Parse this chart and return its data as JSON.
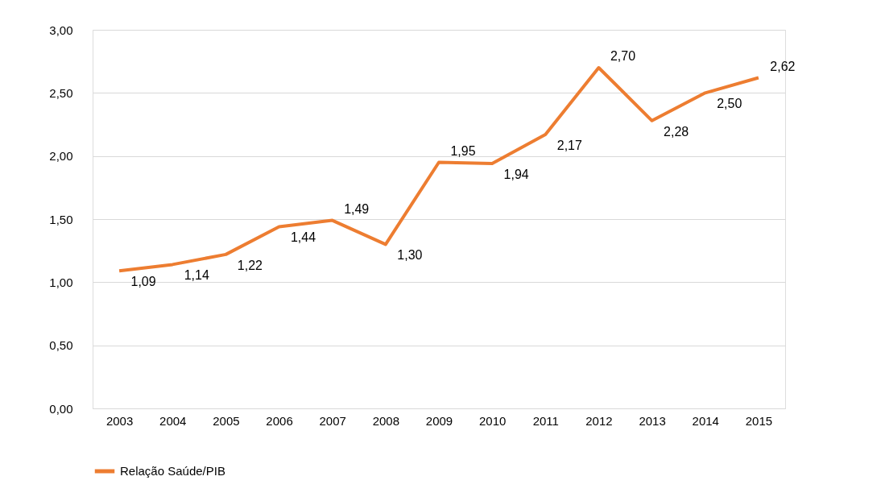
{
  "chart_data": {
    "type": "line",
    "categories": [
      "2003",
      "2004",
      "2005",
      "2006",
      "2007",
      "2008",
      "2009",
      "2010",
      "2011",
      "2012",
      "2013",
      "2014",
      "2015"
    ],
    "series": [
      {
        "name": "Relação Saúde/PIB",
        "color": "#ed7d31",
        "values": [
          1.09,
          1.14,
          1.22,
          1.44,
          1.49,
          1.3,
          1.95,
          1.94,
          2.17,
          2.7,
          2.28,
          2.5,
          2.62
        ],
        "value_labels": [
          "1,09",
          "1,14",
          "1,22",
          "1,44",
          "1,49",
          "1,30",
          "1,95",
          "1,94",
          "2,17",
          "2,70",
          "2,28",
          "2,50",
          "2,62"
        ]
      }
    ],
    "ylim": [
      0,
      3
    ],
    "yticks": [
      {
        "value": 0,
        "label": "0,00"
      },
      {
        "value": 0.5,
        "label": "0,50"
      },
      {
        "value": 1,
        "label": "1,00"
      },
      {
        "value": 1.5,
        "label": "1,50"
      },
      {
        "value": 2,
        "label": "2,00"
      },
      {
        "value": 2.5,
        "label": "2,50"
      },
      {
        "value": 3,
        "label": "3,00"
      }
    ],
    "grid": "y",
    "legend": "bottom",
    "marker": "none",
    "line_style": "solid"
  }
}
